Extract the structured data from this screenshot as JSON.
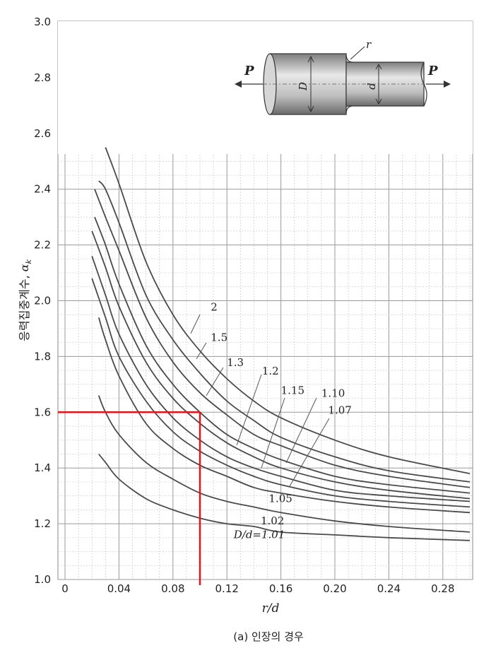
{
  "chart_data": {
    "type": "line",
    "xlabel": "r/d",
    "ylabel": "응력집중계수,",
    "ylabel_symbol": "α",
    "ylabel_subscript": "k",
    "caption": "(a) 인장의 경우",
    "xlim": [
      0,
      0.3
    ],
    "ylim": [
      1.0,
      3.0
    ],
    "grid": true,
    "x_ticks": [
      {
        "v": 0,
        "label": "0"
      },
      {
        "v": 0.04,
        "label": "0.04"
      },
      {
        "v": 0.08,
        "label": "0.08"
      },
      {
        "v": 0.12,
        "label": "0.12"
      },
      {
        "v": 0.16,
        "label": "0.16"
      },
      {
        "v": 0.2,
        "label": "0.20"
      },
      {
        "v": 0.24,
        "label": "0.24"
      },
      {
        "v": 0.28,
        "label": "0.28"
      }
    ],
    "y_ticks": [
      {
        "v": 1.0,
        "label": "1.0"
      },
      {
        "v": 1.2,
        "label": "1.2"
      },
      {
        "v": 1.4,
        "label": "1.4"
      },
      {
        "v": 1.6,
        "label": "1.6"
      },
      {
        "v": 1.8,
        "label": "1.8"
      },
      {
        "v": 2.0,
        "label": "2.0"
      },
      {
        "v": 2.2,
        "label": "2.2"
      },
      {
        "v": 2.4,
        "label": "2.4"
      },
      {
        "v": 2.6,
        "label": "2.6"
      },
      {
        "v": 2.8,
        "label": "2.8"
      },
      {
        "v": 3.0,
        "label": "3.0"
      }
    ],
    "series": [
      {
        "name": "2",
        "x": [
          0.03,
          0.04,
          0.06,
          0.08,
          0.1,
          0.12,
          0.14,
          0.16,
          0.2,
          0.24,
          0.3
        ],
        "y": [
          2.55,
          2.42,
          2.14,
          1.95,
          1.82,
          1.72,
          1.64,
          1.58,
          1.5,
          1.44,
          1.38
        ]
      },
      {
        "name": "1.5",
        "x": [
          0.025,
          0.03,
          0.04,
          0.06,
          0.08,
          0.1,
          0.12,
          0.14,
          0.16,
          0.2,
          0.24,
          0.3
        ],
        "y": [
          2.43,
          2.4,
          2.28,
          2.02,
          1.86,
          1.74,
          1.64,
          1.57,
          1.51,
          1.44,
          1.39,
          1.35
        ]
      },
      {
        "name": "1.3",
        "x": [
          0.022,
          0.03,
          0.04,
          0.06,
          0.08,
          0.1,
          0.12,
          0.14,
          0.16,
          0.2,
          0.24,
          0.3
        ],
        "y": [
          2.4,
          2.3,
          2.18,
          1.94,
          1.78,
          1.67,
          1.59,
          1.52,
          1.48,
          1.41,
          1.37,
          1.33
        ]
      },
      {
        "name": "1.2",
        "x": [
          0.022,
          0.03,
          0.04,
          0.06,
          0.08,
          0.1,
          0.12,
          0.14,
          0.16,
          0.2,
          0.24,
          0.3
        ],
        "y": [
          2.3,
          2.2,
          2.06,
          1.84,
          1.7,
          1.6,
          1.52,
          1.47,
          1.43,
          1.37,
          1.34,
          1.31
        ]
      },
      {
        "name": "1.15",
        "x": [
          0.02,
          0.03,
          0.04,
          0.06,
          0.08,
          0.1,
          0.12,
          0.14,
          0.16,
          0.2,
          0.24,
          0.3
        ],
        "y": [
          2.25,
          2.12,
          1.98,
          1.78,
          1.65,
          1.56,
          1.49,
          1.44,
          1.4,
          1.35,
          1.32,
          1.29
        ]
      },
      {
        "name": "1.10",
        "x": [
          0.02,
          0.03,
          0.04,
          0.06,
          0.08,
          0.1,
          0.12,
          0.14,
          0.16,
          0.2,
          0.24,
          0.3
        ],
        "y": [
          2.16,
          2.02,
          1.88,
          1.7,
          1.58,
          1.5,
          1.44,
          1.4,
          1.37,
          1.32,
          1.3,
          1.28
        ]
      },
      {
        "name": "1.07",
        "x": [
          0.02,
          0.03,
          0.04,
          0.06,
          0.08,
          0.1,
          0.12,
          0.14,
          0.16,
          0.2,
          0.24,
          0.3
        ],
        "y": [
          2.08,
          1.94,
          1.8,
          1.64,
          1.53,
          1.46,
          1.41,
          1.37,
          1.34,
          1.3,
          1.28,
          1.26
        ]
      },
      {
        "name": "1.05",
        "x": [
          0.025,
          0.03,
          0.04,
          0.06,
          0.08,
          0.1,
          0.12,
          0.14,
          0.16,
          0.2,
          0.24,
          0.3
        ],
        "y": [
          1.94,
          1.86,
          1.73,
          1.56,
          1.47,
          1.41,
          1.37,
          1.33,
          1.31,
          1.28,
          1.26,
          1.24
        ]
      },
      {
        "name": "1.02",
        "x": [
          0.025,
          0.03,
          0.04,
          0.06,
          0.08,
          0.1,
          0.12,
          0.14,
          0.16,
          0.2,
          0.24,
          0.3
        ],
        "y": [
          1.66,
          1.6,
          1.52,
          1.42,
          1.36,
          1.31,
          1.28,
          1.26,
          1.24,
          1.21,
          1.19,
          1.17
        ]
      },
      {
        "name": "D/d=1.01",
        "x": [
          0.025,
          0.03,
          0.04,
          0.06,
          0.08,
          0.1,
          0.12,
          0.14,
          0.16,
          0.2,
          0.24,
          0.3
        ],
        "y": [
          1.45,
          1.42,
          1.36,
          1.29,
          1.25,
          1.22,
          1.2,
          1.19,
          1.17,
          1.16,
          1.15,
          1.14
        ]
      }
    ],
    "curve_labels": [
      {
        "text": "2",
        "x": 0.108,
        "y": 1.965
      },
      {
        "text": "1.5",
        "x": 0.108,
        "y": 1.855
      },
      {
        "text": "1.3",
        "x": 0.12,
        "y": 1.765
      },
      {
        "text": "1.2",
        "x": 0.146,
        "y": 1.735
      },
      {
        "text": "1.15",
        "x": 0.16,
        "y": 1.665
      },
      {
        "text": "1.10",
        "x": 0.19,
        "y": 1.655
      },
      {
        "text": "1.07",
        "x": 0.195,
        "y": 1.595
      },
      {
        "text": "1.05",
        "x": 0.151,
        "y": 1.278
      },
      {
        "text": "1.02",
        "x": 0.145,
        "y": 1.198
      },
      {
        "text": "D/d=1.01",
        "x": 0.125,
        "y": 1.148
      }
    ],
    "guide_lines": {
      "color": "#e0151a",
      "x": 0.1,
      "y": 1.6
    }
  },
  "inset": {
    "load_label_left": "P",
    "load_label_right": "P",
    "radius_label": "r",
    "big_diameter_label": "D",
    "small_diameter_label": "d"
  }
}
